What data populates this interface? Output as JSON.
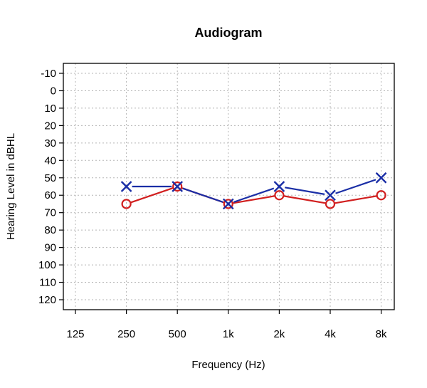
{
  "chart_data": {
    "type": "line",
    "title": "Audiogram",
    "xlabel": "Frequency (Hz)",
    "ylabel": "Hearing Level in dBHL",
    "categories": [
      "125",
      "250",
      "500",
      "1k",
      "2k",
      "4k",
      "8k"
    ],
    "y_ticks": [
      -10,
      0,
      10,
      20,
      30,
      40,
      50,
      60,
      70,
      80,
      90,
      100,
      110,
      120
    ],
    "ylim": [
      -10,
      120
    ],
    "y_inverted": true,
    "grid": true,
    "series": [
      {
        "marker": "circle",
        "color": "#d11f1f",
        "points": [
          {
            "x": "250",
            "y": 65
          },
          {
            "x": "500",
            "y": 55
          },
          {
            "x": "1k",
            "y": 65
          },
          {
            "x": "2k",
            "y": 60
          },
          {
            "x": "4k",
            "y": 65
          },
          {
            "x": "8k",
            "y": 60
          }
        ]
      },
      {
        "marker": "cross",
        "color": "#1a2ea6",
        "points": [
          {
            "x": "250",
            "y": 55
          },
          {
            "x": "500",
            "y": 55
          },
          {
            "x": "1k",
            "y": 65
          },
          {
            "x": "2k",
            "y": 55
          },
          {
            "x": "4k",
            "y": 60
          },
          {
            "x": "8k",
            "y": 50
          }
        ]
      }
    ]
  }
}
